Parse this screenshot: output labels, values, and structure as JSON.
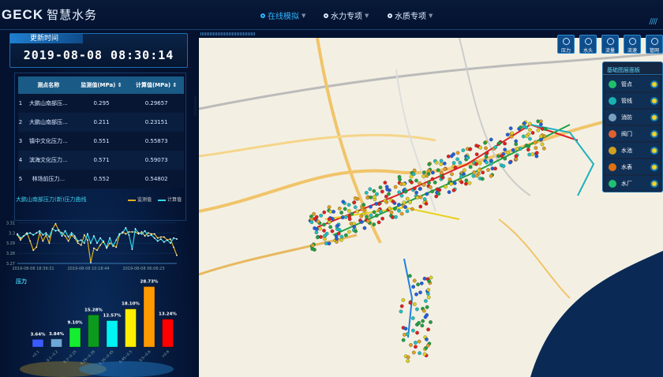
{
  "header": {
    "logo": "GECK",
    "app_title": "智慧水务",
    "nav": [
      {
        "label": "在线模拟",
        "active": true
      },
      {
        "label": "水力专项",
        "active": false
      },
      {
        "label": "水质专项",
        "active": false
      }
    ]
  },
  "update": {
    "label": "更新时间",
    "time": "2019-08-08 08:30:14"
  },
  "table": {
    "columns": [
      "",
      "测点名称",
      "监测值(MPa) ⇕",
      "计算值(MPa) ⇕"
    ],
    "rows": [
      [
        "1",
        "大鹏山南部压...",
        "0.295",
        "0.29657"
      ],
      [
        "2",
        "大鹏山南部压...",
        "0.211",
        "0.23151"
      ],
      [
        "3",
        "镇中文化压力...",
        "0.551",
        "0.55873"
      ],
      [
        "4",
        "滨海文化压力...",
        "0.571",
        "0.59073"
      ],
      [
        "5",
        "林场前压力...",
        "0.552",
        "0.54802"
      ]
    ]
  },
  "chart_data": [
    {
      "type": "line",
      "title": "大鹏山南部压力(新)压力曲线",
      "legend": [
        "监测值",
        "计算值"
      ],
      "legend_placement": "top-right",
      "yticks": [
        "3.31",
        "3.3",
        "3.29",
        "3.28",
        "3.27"
      ],
      "ylim": [
        3.27,
        3.315
      ],
      "xticks": [
        "2019-08-08 18:39:31",
        "2019-08-08 10:18:44",
        "2019-08-08 06:06:23"
      ],
      "series": [
        {
          "name": "监测值",
          "color": "#e0b020",
          "values": [
            3.298,
            3.293,
            3.297,
            3.3,
            3.292,
            3.283,
            3.286,
            3.3,
            3.292,
            3.298,
            3.29,
            3.304,
            3.309,
            3.302,
            3.3,
            3.297,
            3.292,
            3.298,
            3.295,
            3.29,
            3.288,
            3.298,
            3.293,
            3.271,
            3.285,
            3.283,
            3.288,
            3.292,
            3.285,
            3.29,
            3.288,
            3.286,
            3.298,
            3.301,
            3.299,
            3.301,
            3.301,
            3.301,
            3.299,
            3.301,
            3.297,
            3.3,
            3.299,
            3.299,
            3.295,
            3.296,
            3.296,
            3.293,
            3.294,
            3.286,
            3.278
          ]
        },
        {
          "name": "计算值",
          "color": "#30d8e8",
          "values": [
            3.299,
            3.295,
            3.297,
            3.299,
            3.3,
            3.298,
            3.3,
            3.302,
            3.298,
            3.3,
            3.296,
            3.304,
            3.302,
            3.303,
            3.297,
            3.302,
            3.296,
            3.3,
            3.297,
            3.292,
            3.293,
            3.29,
            3.299,
            3.29,
            3.297,
            3.29,
            3.295,
            3.291,
            3.286,
            3.295,
            3.287,
            3.293,
            3.299,
            3.3,
            3.305,
            3.298,
            3.284,
            3.304,
            3.3,
            3.299,
            3.302,
            3.297,
            3.298,
            3.295,
            3.292,
            3.294,
            3.291,
            3.293,
            3.29,
            3.295,
            3.294
          ]
        }
      ]
    },
    {
      "type": "bar",
      "title": "压力",
      "categories": [
        "<0.1",
        "0.1~0.2",
        "0.2~0.25",
        "0.25~0.35",
        "0.35~0.45",
        "0.45~0.5",
        "0.5~0.6",
        ">0.6"
      ],
      "values": [
        3.64,
        3.84,
        9.1,
        15.28,
        12.57,
        18.1,
        28.73,
        13.24
      ],
      "labels": [
        "3.64%",
        "3.84%",
        "9.10%",
        "15.28%",
        "12.57%",
        "18.10%",
        "28.73%",
        "13.24%"
      ],
      "colors": [
        "#3a5bff",
        "#6ea8d8",
        "#14ee30",
        "#0b9a1c",
        "#00f4f4",
        "#ffee00",
        "#ff9900",
        "#ff0000"
      ]
    }
  ],
  "map": {
    "tools": [
      "压力",
      "水头",
      "流量",
      "流速",
      "管网"
    ],
    "layers_title": "基础图层面板",
    "layers": [
      {
        "label": "管点",
        "color": "#1fc06a"
      },
      {
        "label": "管线",
        "color": "#1ab0b0"
      },
      {
        "label": "消防",
        "color": "#7aa0c0"
      },
      {
        "label": "阀门",
        "color": "#e06030"
      },
      {
        "label": "水池",
        "color": "#d0a020"
      },
      {
        "label": "水表",
        "color": "#e07010"
      },
      {
        "label": "水厂",
        "color": "#20c070"
      }
    ]
  }
}
